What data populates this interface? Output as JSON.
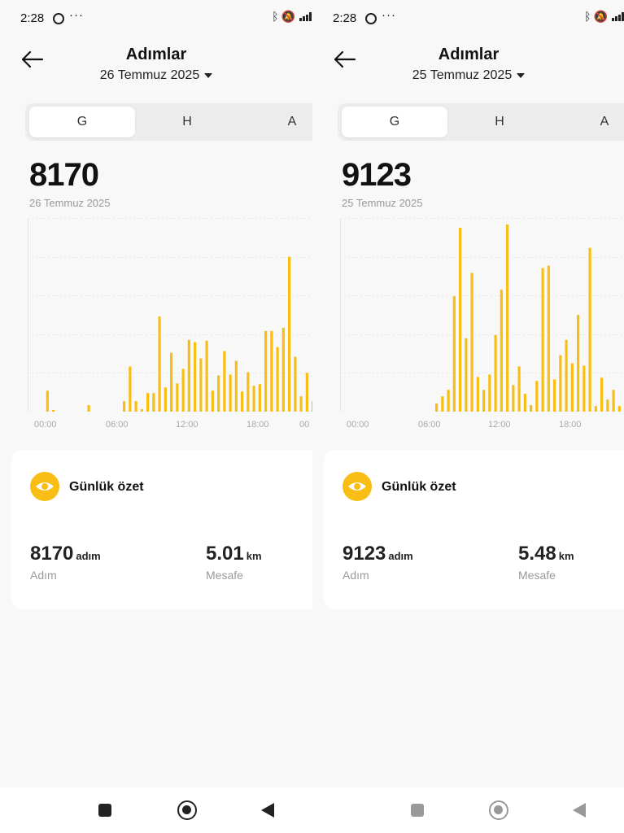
{
  "status": {
    "time": "2:28",
    "dots": "···"
  },
  "colors": {
    "accent": "#f9be15",
    "bar": "#f9be15",
    "grid": "#e6e6e6"
  },
  "panels": [
    {
      "title": "Adımlar",
      "date": "26 Temmuz 2025",
      "tabs": [
        {
          "label": "G"
        },
        {
          "label": "H"
        },
        {
          "label": "A"
        }
      ],
      "active_tab": 0,
      "total": "8170",
      "subdate": "26 Temmuz 2025",
      "summary": {
        "title": "Günlük özet",
        "steps_value": "8170",
        "steps_unit": "adım",
        "steps_label": "Adım",
        "distance_value": "5.01",
        "distance_unit": "km",
        "distance_label": "Mesafe"
      },
      "chart_data": {
        "type": "bar",
        "x_tick_labels": [
          "00:00",
          "06:00",
          "12:00",
          "18:00",
          "00"
        ],
        "ylim": [
          0,
          240
        ],
        "bars": [
          {
            "i": 3,
            "v": 26
          },
          {
            "i": 4,
            "v": 2
          },
          {
            "i": 10,
            "v": 8
          },
          {
            "i": 16,
            "v": 13
          },
          {
            "i": 17,
            "v": 56
          },
          {
            "i": 18,
            "v": 13
          },
          {
            "i": 19,
            "v": 3
          },
          {
            "i": 20,
            "v": 23
          },
          {
            "i": 21,
            "v": 23
          },
          {
            "i": 22,
            "v": 118
          },
          {
            "i": 23,
            "v": 30
          },
          {
            "i": 24,
            "v": 73
          },
          {
            "i": 25,
            "v": 35
          },
          {
            "i": 26,
            "v": 53
          },
          {
            "i": 27,
            "v": 89
          },
          {
            "i": 28,
            "v": 86
          },
          {
            "i": 29,
            "v": 66
          },
          {
            "i": 30,
            "v": 88
          },
          {
            "i": 31,
            "v": 26
          },
          {
            "i": 32,
            "v": 45
          },
          {
            "i": 33,
            "v": 75
          },
          {
            "i": 34,
            "v": 46
          },
          {
            "i": 35,
            "v": 63
          },
          {
            "i": 36,
            "v": 25
          },
          {
            "i": 37,
            "v": 49
          },
          {
            "i": 38,
            "v": 32
          },
          {
            "i": 39,
            "v": 34
          },
          {
            "i": 40,
            "v": 100
          },
          {
            "i": 41,
            "v": 100
          },
          {
            "i": 42,
            "v": 80
          },
          {
            "i": 43,
            "v": 104
          },
          {
            "i": 44,
            "v": 192
          },
          {
            "i": 45,
            "v": 68
          },
          {
            "i": 46,
            "v": 19
          },
          {
            "i": 47,
            "v": 48
          },
          {
            "i": 48,
            "v": 13
          }
        ]
      }
    },
    {
      "title": "Adımlar",
      "date": "25 Temmuz 2025",
      "tabs": [
        {
          "label": "G"
        },
        {
          "label": "H"
        },
        {
          "label": "A"
        }
      ],
      "active_tab": 0,
      "total": "9123",
      "subdate": "25 Temmuz 2025",
      "summary": {
        "title": "Günlük özet",
        "steps_value": "9123",
        "steps_unit": "adım",
        "steps_label": "Adım",
        "distance_value": "5.48",
        "distance_unit": "km",
        "distance_label": "Mesafe"
      },
      "chart_data": {
        "type": "bar",
        "x_tick_labels": [
          "00:00",
          "06:00",
          "12:00",
          "18:00"
        ],
        "ylim": [
          0,
          240
        ],
        "bars": [
          {
            "i": 16,
            "v": 10
          },
          {
            "i": 17,
            "v": 19
          },
          {
            "i": 18,
            "v": 27
          },
          {
            "i": 19,
            "v": 143
          },
          {
            "i": 20,
            "v": 228
          },
          {
            "i": 21,
            "v": 91
          },
          {
            "i": 22,
            "v": 172
          },
          {
            "i": 23,
            "v": 43
          },
          {
            "i": 24,
            "v": 27
          },
          {
            "i": 25,
            "v": 46
          },
          {
            "i": 26,
            "v": 95
          },
          {
            "i": 27,
            "v": 151
          },
          {
            "i": 28,
            "v": 232
          },
          {
            "i": 29,
            "v": 33
          },
          {
            "i": 30,
            "v": 56
          },
          {
            "i": 31,
            "v": 22
          },
          {
            "i": 32,
            "v": 8
          },
          {
            "i": 33,
            "v": 38
          },
          {
            "i": 34,
            "v": 178
          },
          {
            "i": 35,
            "v": 181
          },
          {
            "i": 36,
            "v": 40
          },
          {
            "i": 37,
            "v": 70
          },
          {
            "i": 38,
            "v": 89
          },
          {
            "i": 39,
            "v": 60
          },
          {
            "i": 40,
            "v": 120
          },
          {
            "i": 41,
            "v": 57
          },
          {
            "i": 42,
            "v": 203
          },
          {
            "i": 43,
            "v": 7
          },
          {
            "i": 44,
            "v": 42
          },
          {
            "i": 45,
            "v": 15
          },
          {
            "i": 46,
            "v": 27
          },
          {
            "i": 47,
            "v": 7
          },
          {
            "i": 48,
            "v": 70
          }
        ]
      }
    }
  ]
}
